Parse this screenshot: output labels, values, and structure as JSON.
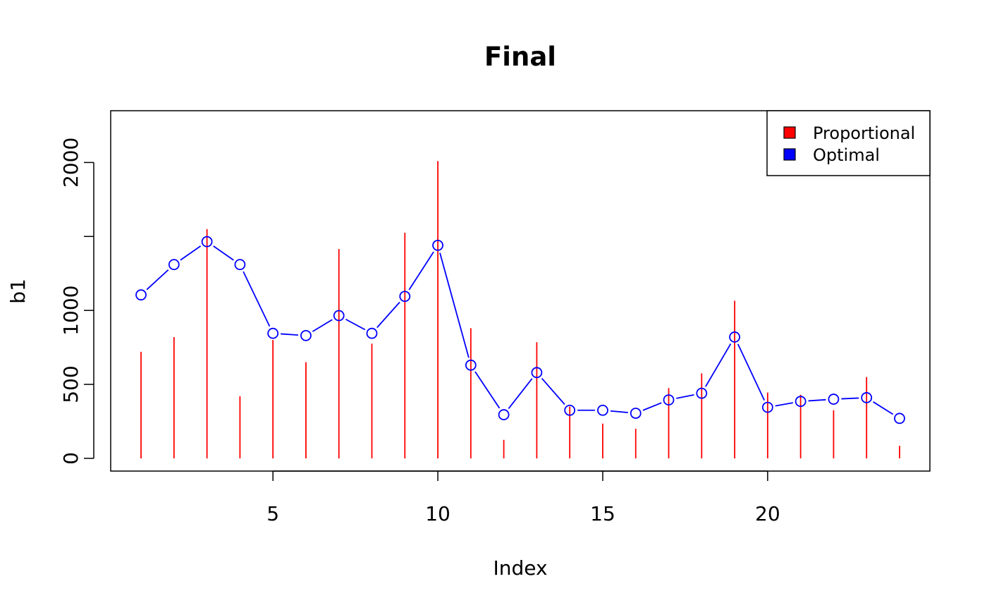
{
  "chart_data": {
    "type": "line",
    "title": "Final",
    "xlabel": "Index",
    "ylabel": "b1",
    "xlim": [
      0.08,
      24.92
    ],
    "ylim": [
      -86,
      2350
    ],
    "x_ticks": [
      5,
      10,
      15,
      20
    ],
    "y_ticks": [
      0,
      500,
      1000,
      2000
    ],
    "x": [
      1,
      2,
      3,
      4,
      5,
      6,
      7,
      8,
      9,
      10,
      11,
      12,
      13,
      14,
      15,
      16,
      17,
      18,
      19,
      20,
      21,
      22,
      23,
      24
    ],
    "series": [
      {
        "name": "Proportional",
        "render": "vertical-lines",
        "color": "#ff0000",
        "values": [
          720,
          820,
          1550,
          420,
          800,
          650,
          1415,
          775,
          1525,
          2010,
          880,
          125,
          785,
          350,
          235,
          200,
          475,
          575,
          1065,
          445,
          430,
          325,
          550,
          85
        ]
      },
      {
        "name": "Optimal",
        "render": "line-with-open-circles",
        "color": "#0000ff",
        "values": [
          1105,
          1310,
          1465,
          1310,
          845,
          830,
          965,
          845,
          1095,
          1440,
          630,
          295,
          580,
          325,
          325,
          305,
          395,
          440,
          820,
          345,
          385,
          400,
          410,
          270
        ]
      }
    ],
    "legend": {
      "position": "top-right",
      "entries": [
        {
          "label": "Proportional",
          "color": "#ff0000"
        },
        {
          "label": "Optimal",
          "color": "#0000ff"
        }
      ]
    },
    "grid": false
  }
}
